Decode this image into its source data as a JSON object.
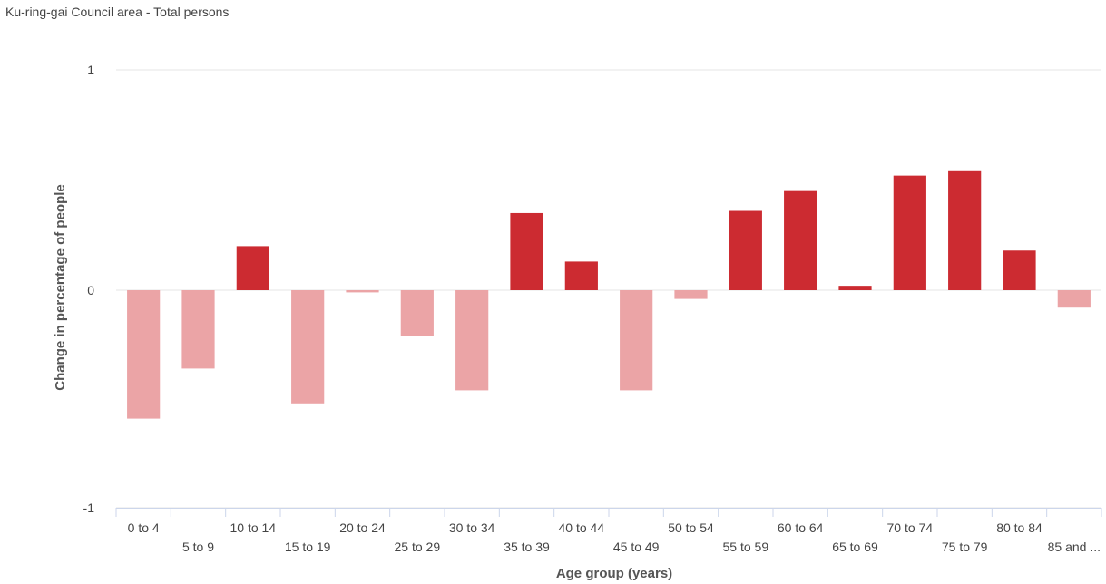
{
  "chart_data": {
    "type": "bar",
    "title": "Ku-ring-gai Council area - Total persons",
    "xlabel": "Age group (years)",
    "ylabel": "Change in percentage of people",
    "categories": [
      "0 to 4",
      "5 to 9",
      "10 to 14",
      "15 to 19",
      "20 to 24",
      "25 to 29",
      "30 to 34",
      "35 to 39",
      "40 to 44",
      "45 to 49",
      "50 to 54",
      "55 to 59",
      "60 to 64",
      "65 to 69",
      "70 to 74",
      "75 to 79",
      "80 to 84",
      "85 and ..."
    ],
    "values": [
      -0.59,
      -0.36,
      0.2,
      -0.52,
      -0.01,
      -0.21,
      -0.46,
      0.35,
      0.13,
      -0.46,
      -0.04,
      0.36,
      0.45,
      0.02,
      0.52,
      0.54,
      0.18,
      -0.08
    ],
    "ylim": [
      -1,
      1
    ],
    "yticks": [
      "1",
      "0",
      "-1"
    ],
    "grid": true,
    "colors": {
      "positive": "#cc2b31",
      "negative": "#eba4a6",
      "gridline": "#e6e6e6",
      "axis": "#ccd6eb",
      "text": "#444444",
      "axis_title": "#555555"
    }
  }
}
